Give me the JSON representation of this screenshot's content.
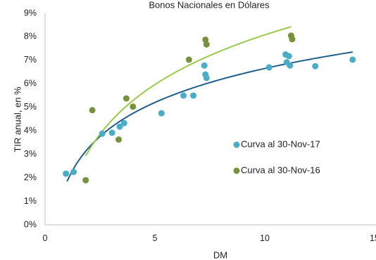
{
  "chart_data": {
    "type": "scatter",
    "title": "Bonos Nacionales en Dólares",
    "xlabel": "DM",
    "ylabel": "TIR anual, en %",
    "xlim": [
      0,
      15
    ],
    "ylim": [
      0,
      9
    ],
    "x_ticks": [
      "0",
      "5",
      "10",
      "15"
    ],
    "y_ticks": [
      "0%",
      "1%",
      "2%",
      "3%",
      "4%",
      "5%",
      "6%",
      "7%",
      "8%",
      "9%"
    ],
    "grid": false,
    "legend_position": "right-middle",
    "series": [
      {
        "name": "Curva al 30-Nov-17",
        "color": "#4bacc6",
        "trend_color": "#1f5f8b",
        "points": [
          {
            "x": 0.95,
            "y": 2.18
          },
          {
            "x": 1.3,
            "y": 2.25
          },
          {
            "x": 2.6,
            "y": 3.88
          },
          {
            "x": 3.05,
            "y": 3.92
          },
          {
            "x": 3.4,
            "y": 4.18
          },
          {
            "x": 3.6,
            "y": 4.33
          },
          {
            "x": 5.3,
            "y": 4.75
          },
          {
            "x": 6.3,
            "y": 5.5
          },
          {
            "x": 6.75,
            "y": 5.5
          },
          {
            "x": 7.25,
            "y": 6.78
          },
          {
            "x": 7.3,
            "y": 6.4
          },
          {
            "x": 7.35,
            "y": 6.25
          },
          {
            "x": 10.2,
            "y": 6.7
          },
          {
            "x": 10.95,
            "y": 7.25
          },
          {
            "x": 11.0,
            "y": 6.92
          },
          {
            "x": 11.1,
            "y": 7.18
          },
          {
            "x": 11.15,
            "y": 6.78
          },
          {
            "x": 12.3,
            "y": 6.75
          },
          {
            "x": 14.0,
            "y": 7.03
          }
        ],
        "trend": {
          "from": 1.0,
          "to": 14.0
        }
      },
      {
        "name": "Curva al 30-Nov-16",
        "color": "#76923c",
        "trend_color": "#9bc94b",
        "points": [
          {
            "x": 1.85,
            "y": 1.9
          },
          {
            "x": 2.15,
            "y": 4.88
          },
          {
            "x": 3.35,
            "y": 3.63
          },
          {
            "x": 3.7,
            "y": 5.38
          },
          {
            "x": 4.0,
            "y": 5.03
          },
          {
            "x": 6.55,
            "y": 7.03
          },
          {
            "x": 7.3,
            "y": 7.88
          },
          {
            "x": 7.35,
            "y": 7.68
          },
          {
            "x": 11.2,
            "y": 8.05
          },
          {
            "x": 11.25,
            "y": 7.9
          }
        ],
        "trend": {
          "from": 1.85,
          "to": 11.2
        }
      }
    ]
  }
}
